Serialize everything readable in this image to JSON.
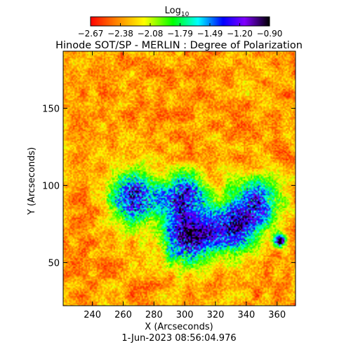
{
  "chart_data": {
    "type": "heatmap",
    "title": "Hinode SOT/SP - MERLIN : Degree of Polarization",
    "xlabel": "X (Arcseconds)",
    "ylabel": "Y (Arcseconds)",
    "timestamp": "1-Jun-2023 08:56:04.976",
    "xlim": [
      221,
      372
    ],
    "ylim": [
      22,
      187
    ],
    "xticks": [
      240,
      260,
      280,
      300,
      320,
      340,
      360
    ],
    "yticks": [
      50,
      100,
      150
    ],
    "colorbar": {
      "label": "Log",
      "label_subscript": "10",
      "range": [
        -2.67,
        -0.9
      ],
      "ticks": [
        "-2.67",
        "-2.38",
        "-2.08",
        "-1.79",
        "-1.49",
        "-1.20",
        "-0.90"
      ],
      "colormap": "rainbow",
      "stops": [
        "#ff0000",
        "#ff7f00",
        "#ffff00",
        "#00ff00",
        "#00ffff",
        "#0000ff",
        "#8000ff",
        "#000000"
      ]
    },
    "features": [
      {
        "description": "strong polarization patch",
        "x": 268,
        "y": 92,
        "level": -1.3
      },
      {
        "description": "strong polarization patch",
        "x": 302,
        "y": 65,
        "level": -1.2
      },
      {
        "description": "strong polarization patch",
        "x": 330,
        "y": 72,
        "level": -1.4
      },
      {
        "description": "strong polarization patch",
        "x": 300,
        "y": 92,
        "level": -1.4
      },
      {
        "description": "strong polarization patch",
        "x": 346,
        "y": 88,
        "level": -1.5
      },
      {
        "description": "compact dark patch",
        "x": 362,
        "y": 64,
        "level": -1.0
      }
    ]
  }
}
